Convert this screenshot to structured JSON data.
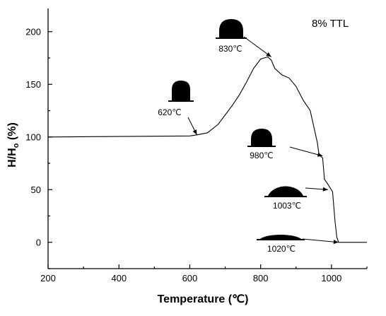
{
  "chart_data": {
    "type": "line",
    "title": "",
    "legend_text": "8% TTL",
    "legend_position": "top-right",
    "xlabel": "Temperature (℃)",
    "ylabel_main": "H/H",
    "ylabel_sub": "o",
    "ylabel_unit": " (%)",
    "xlim": [
      200,
      1100
    ],
    "ylim": [
      -25,
      222
    ],
    "xticks": [
      200,
      400,
      600,
      800,
      1000
    ],
    "yticks": [
      0,
      50,
      100,
      150,
      200
    ],
    "grid": false,
    "series": [
      {
        "x": [
          200,
          600,
          620,
          650,
          680,
          700,
          720,
          740,
          760,
          780,
          800,
          820,
          830,
          840,
          860,
          880,
          900,
          920,
          940,
          960,
          965,
          975,
          980,
          990,
          1003,
          1010,
          1015,
          1020,
          1100
        ],
        "y": [
          100,
          101,
          102,
          104,
          112,
          121,
          130,
          140,
          152,
          165,
          174,
          176,
          173,
          165,
          159,
          156,
          148,
          135,
          125,
          95,
          83,
          80,
          60,
          55,
          48,
          20,
          5,
          0,
          0
        ]
      }
    ],
    "annotations": [
      {
        "label": "620℃",
        "x": 620,
        "y": 102,
        "shape": "tall"
      },
      {
        "label": "830℃",
        "x": 830,
        "y": 176,
        "shape": "tallwide"
      },
      {
        "label": "980℃",
        "x": 975,
        "y": 82,
        "shape": "dome"
      },
      {
        "label": "1003℃",
        "x": 990,
        "y": 50,
        "shape": "flatdome"
      },
      {
        "label": "1020℃",
        "x": 1020,
        "y": 0,
        "shape": "lens"
      }
    ]
  }
}
